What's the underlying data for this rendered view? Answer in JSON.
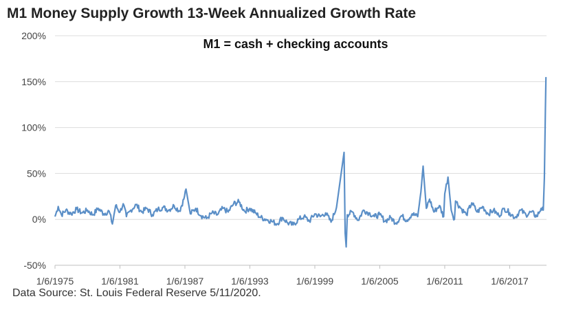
{
  "title": "M1 Money Supply Growth 13-Week Annualized Growth Rate",
  "source": "Data Source: St. Louis Federal Reserve 5/11/2020.",
  "chart_data": {
    "type": "line",
    "title": "M1 Money Supply Growth 13-Week Annualized Growth Rate",
    "annotation": "M1 = cash + checking accounts",
    "xlabel": "",
    "ylabel": "",
    "ylim": [
      -50,
      200
    ],
    "y_ticks": [
      -50,
      0,
      50,
      100,
      150,
      200
    ],
    "y_tick_labels": [
      "-50%",
      "0%",
      "50%",
      "100%",
      "150%",
      "200%"
    ],
    "x_tick_labels": [
      "1/6/1975",
      "1/6/1981",
      "1/6/1987",
      "1/6/1993",
      "1/6/1999",
      "1/6/2005",
      "1/6/2011",
      "1/6/2017"
    ],
    "x_ticks_year": [
      1975,
      1981,
      1987,
      1993,
      1999,
      2005,
      2011,
      2017
    ],
    "xlim": [
      1975,
      2020.4
    ],
    "grid": "horizontal",
    "line_color": "#5b8fc7",
    "series": [
      {
        "x": [
          1975.0,
          1975.3,
          1975.6,
          1976.0,
          1976.5,
          1977.0,
          1977.5,
          1978.0,
          1978.5,
          1979.0,
          1979.5,
          1980.0,
          1980.3,
          1980.6,
          1981.0,
          1981.3,
          1981.6,
          1982.0,
          1982.5,
          1983.0,
          1983.5,
          1984.0,
          1984.5,
          1985.0,
          1985.5,
          1986.0,
          1986.5,
          1986.9,
          1987.1,
          1987.5,
          1988.0,
          1988.5,
          1989.0,
          1989.5,
          1990.0,
          1990.5,
          1991.0,
          1991.5,
          1992.0,
          1992.5,
          1993.0,
          1993.5,
          1994.0,
          1994.5,
          1995.0,
          1995.5,
          1996.0,
          1996.5,
          1997.0,
          1997.5,
          1998.0,
          1998.5,
          1999.0,
          1999.5,
          2000.0,
          2000.5,
          2001.0,
          2001.7,
          2001.8,
          2001.9,
          2002.0,
          2002.5,
          2003.0,
          2003.5,
          2004.0,
          2004.5,
          2005.0,
          2005.5,
          2006.0,
          2006.5,
          2007.0,
          2007.5,
          2008.0,
          2008.5,
          2008.8,
          2009.0,
          2009.3,
          2009.6,
          2010.0,
          2010.5,
          2010.9,
          2011.0,
          2011.3,
          2011.6,
          2011.9,
          2012.0,
          2012.5,
          2013.0,
          2013.5,
          2014.0,
          2014.5,
          2015.0,
          2015.5,
          2016.0,
          2016.5,
          2017.0,
          2017.5,
          2018.0,
          2018.5,
          2019.0,
          2019.5,
          2019.9,
          2020.1,
          2020.2,
          2020.3,
          2020.35
        ],
        "y": [
          3,
          14,
          5,
          10,
          6,
          11,
          7,
          10,
          5,
          12,
          6,
          9,
          -5,
          15,
          8,
          17,
          3,
          10,
          16,
          8,
          12,
          5,
          11,
          13,
          10,
          15,
          9,
          22,
          33,
          6,
          12,
          4,
          1,
          7,
          5,
          12,
          8,
          17,
          19,
          9,
          12,
          7,
          2,
          0,
          -2,
          -5,
          2,
          -4,
          -6,
          0,
          3,
          -2,
          6,
          3,
          7,
          -3,
          13,
          73,
          -15,
          -30,
          5,
          8,
          -1,
          10,
          7,
          3,
          5,
          -2,
          2,
          -4,
          4,
          -1,
          6,
          3,
          30,
          58,
          12,
          22,
          8,
          15,
          3,
          28,
          46,
          10,
          0,
          20,
          12,
          5,
          18,
          8,
          14,
          6,
          10,
          4,
          12,
          7,
          2,
          10,
          5,
          8,
          3,
          12,
          10,
          45,
          120,
          155
        ]
      }
    ]
  }
}
